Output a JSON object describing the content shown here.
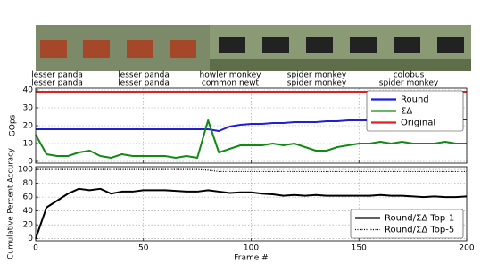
{
  "frame_labels": [
    [
      "lesser panda",
      "lesser panda"
    ],
    [
      "lesser panda",
      "lesser panda"
    ],
    [
      "howler monkey",
      "common newt"
    ],
    [
      "spider monkey",
      "spider monkey"
    ],
    [
      "colobus",
      "spider monkey"
    ]
  ],
  "chart_data": [
    {
      "type": "line",
      "ylabel": "GOps",
      "xlim": [
        0,
        200
      ],
      "xticks": [
        0,
        50,
        100,
        150,
        200
      ],
      "ylim": [
        -1,
        41
      ],
      "yticks": [
        0,
        10,
        20,
        30,
        40
      ],
      "grid": true,
      "legend": "upper right",
      "x": [
        0,
        5,
        10,
        15,
        20,
        25,
        30,
        35,
        40,
        45,
        50,
        55,
        60,
        65,
        70,
        75,
        80,
        85,
        90,
        95,
        100,
        105,
        110,
        115,
        120,
        125,
        130,
        135,
        140,
        145,
        150,
        155,
        160,
        165,
        170,
        175,
        180,
        185,
        190,
        195,
        200
      ],
      "series": [
        {
          "name": "Round",
          "color": "#1f1fd8",
          "dash": "solid",
          "values": [
            18,
            18,
            18,
            18,
            18,
            18,
            18,
            18,
            18,
            18,
            18,
            18,
            18,
            18,
            18,
            18,
            18,
            17,
            19.5,
            20.5,
            21,
            21,
            21.5,
            21.5,
            22,
            22,
            22,
            22.5,
            22.5,
            23,
            23,
            23,
            23.5,
            23.5,
            23.5,
            23.5,
            23.5,
            23.5,
            23.5,
            23.5,
            23.5
          ]
        },
        {
          "name": "ΣΔ",
          "color": "#138a13",
          "dash": "solid",
          "values": [
            15,
            4,
            3,
            3,
            5,
            6,
            3,
            2,
            4,
            3,
            3,
            3,
            3,
            2,
            3,
            2,
            23,
            5,
            7,
            9,
            9,
            9,
            10,
            9,
            10,
            8,
            6,
            6,
            8,
            9,
            10,
            10,
            11,
            10,
            11,
            10,
            10,
            10,
            11,
            10,
            10
          ]
        },
        {
          "name": "Original",
          "color": "#e02020",
          "dash": "solid",
          "values": [
            39,
            39,
            39,
            39,
            39,
            39,
            39,
            39,
            39,
            39,
            39,
            39,
            39,
            39,
            39,
            39,
            39,
            39,
            39,
            39,
            39,
            39,
            39,
            39,
            39,
            39,
            39,
            39,
            39,
            39,
            39,
            39,
            39,
            39,
            39,
            39,
            39,
            39,
            39,
            39,
            39
          ]
        }
      ]
    },
    {
      "type": "line",
      "ylabel": "Cumulative Percent Accuracy",
      "xlabel": "Frame #",
      "xlim": [
        0,
        200
      ],
      "xticks": [
        0,
        50,
        100,
        150,
        200
      ],
      "ylim": [
        -3,
        104
      ],
      "yticks": [
        0,
        20,
        40,
        60,
        80,
        100
      ],
      "grid": true,
      "legend": "lower right",
      "x": [
        0,
        5,
        10,
        15,
        20,
        25,
        30,
        35,
        40,
        45,
        50,
        55,
        60,
        65,
        70,
        75,
        80,
        85,
        90,
        95,
        100,
        105,
        110,
        115,
        120,
        125,
        130,
        135,
        140,
        145,
        150,
        155,
        160,
        165,
        170,
        175,
        180,
        185,
        190,
        195,
        200
      ],
      "series": [
        {
          "name": "Round/ΣΔ Top-1",
          "color": "#000000",
          "dash": "solid",
          "values": [
            0,
            45,
            55,
            65,
            72,
            70,
            72,
            65,
            68,
            68,
            70,
            70,
            70,
            69,
            68,
            68,
            70,
            68,
            66,
            67,
            67,
            65,
            64,
            62,
            63,
            62,
            63,
            62,
            62,
            62,
            62,
            62,
            63,
            62,
            62,
            61,
            60,
            61,
            60,
            60,
            61
          ]
        },
        {
          "name": "Round/ΣΔ Top-5",
          "color": "#000000",
          "dash": "dotted",
          "values": [
            100,
            100,
            100,
            100,
            100,
            100,
            100,
            100,
            100,
            100,
            100,
            100,
            100,
            100,
            100,
            100,
            99,
            97,
            97,
            97,
            97,
            97,
            97,
            97,
            97,
            97,
            97,
            97,
            97,
            97,
            97,
            97,
            97,
            97,
            97,
            97,
            97,
            97,
            97,
            97,
            97
          ]
        }
      ]
    }
  ]
}
